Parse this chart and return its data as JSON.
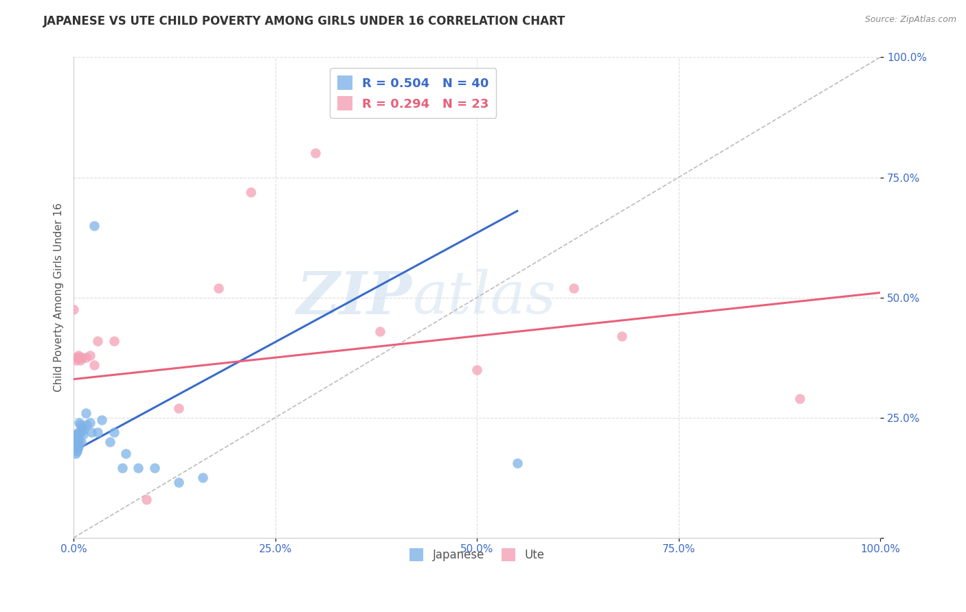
{
  "title": "JAPANESE VS UTE CHILD POVERTY AMONG GIRLS UNDER 16 CORRELATION CHART",
  "source": "Source: ZipAtlas.com",
  "ylabel": "Child Poverty Among Girls Under 16",
  "xlim": [
    0,
    1
  ],
  "ylim": [
    0,
    1
  ],
  "xticks": [
    0,
    0.25,
    0.5,
    0.75,
    1.0
  ],
  "yticks": [
    0,
    0.25,
    0.5,
    0.75,
    1.0
  ],
  "xticklabels": [
    "0.0%",
    "25.0%",
    "50.0%",
    "75.0%",
    "100.0%"
  ],
  "yticklabels": [
    "",
    "25.0%",
    "50.0%",
    "75.0%",
    "100.0%"
  ],
  "watermark_zip": "ZIP",
  "watermark_atlas": "atlas",
  "legend_japanese_R": "0.504",
  "legend_japanese_N": "40",
  "legend_ute_R": "0.294",
  "legend_ute_N": "23",
  "japanese_color": "#7EB3E8",
  "ute_color": "#F4A0B5",
  "diagonal_color": "#BBBBBB",
  "japanese_line_color": "#3A6BC9",
  "ute_line_color": "#E8607A",
  "japanese_line": {
    "x0": 0.0,
    "y0": 0.18,
    "x1": 0.55,
    "y1": 0.68
  },
  "ute_line": {
    "x0": 0.0,
    "y0": 0.33,
    "x1": 1.0,
    "y1": 0.51
  },
  "japanese_points": [
    [
      0.002,
      0.175
    ],
    [
      0.002,
      0.195
    ],
    [
      0.002,
      0.21
    ],
    [
      0.003,
      0.185
    ],
    [
      0.003,
      0.2
    ],
    [
      0.003,
      0.215
    ],
    [
      0.004,
      0.18
    ],
    [
      0.004,
      0.195
    ],
    [
      0.004,
      0.21
    ],
    [
      0.005,
      0.185
    ],
    [
      0.005,
      0.2
    ],
    [
      0.005,
      0.215
    ],
    [
      0.006,
      0.19
    ],
    [
      0.006,
      0.205
    ],
    [
      0.006,
      0.22
    ],
    [
      0.007,
      0.2
    ],
    [
      0.007,
      0.215
    ],
    [
      0.007,
      0.24
    ],
    [
      0.008,
      0.22
    ],
    [
      0.008,
      0.235
    ],
    [
      0.009,
      0.2
    ],
    [
      0.01,
      0.23
    ],
    [
      0.012,
      0.215
    ],
    [
      0.013,
      0.225
    ],
    [
      0.015,
      0.26
    ],
    [
      0.016,
      0.235
    ],
    [
      0.02,
      0.24
    ],
    [
      0.022,
      0.22
    ],
    [
      0.025,
      0.65
    ],
    [
      0.03,
      0.22
    ],
    [
      0.035,
      0.245
    ],
    [
      0.045,
      0.2
    ],
    [
      0.05,
      0.22
    ],
    [
      0.06,
      0.145
    ],
    [
      0.065,
      0.175
    ],
    [
      0.08,
      0.145
    ],
    [
      0.1,
      0.145
    ],
    [
      0.13,
      0.115
    ],
    [
      0.16,
      0.125
    ],
    [
      0.55,
      0.155
    ]
  ],
  "ute_points": [
    [
      0.0,
      0.475
    ],
    [
      0.003,
      0.37
    ],
    [
      0.004,
      0.375
    ],
    [
      0.005,
      0.375
    ],
    [
      0.006,
      0.38
    ],
    [
      0.007,
      0.375
    ],
    [
      0.008,
      0.37
    ],
    [
      0.01,
      0.375
    ],
    [
      0.015,
      0.375
    ],
    [
      0.02,
      0.38
    ],
    [
      0.025,
      0.36
    ],
    [
      0.03,
      0.41
    ],
    [
      0.05,
      0.41
    ],
    [
      0.09,
      0.08
    ],
    [
      0.13,
      0.27
    ],
    [
      0.18,
      0.52
    ],
    [
      0.22,
      0.72
    ],
    [
      0.3,
      0.8
    ],
    [
      0.38,
      0.43
    ],
    [
      0.5,
      0.35
    ],
    [
      0.62,
      0.52
    ],
    [
      0.68,
      0.42
    ],
    [
      0.9,
      0.29
    ]
  ]
}
